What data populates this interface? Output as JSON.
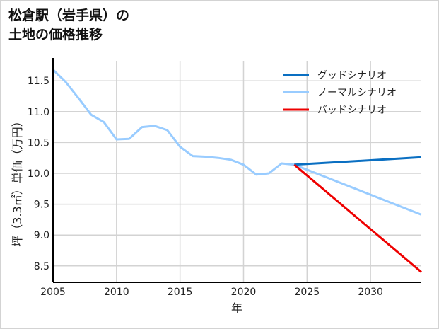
{
  "title": {
    "line1": "松倉駅（岩手県）の",
    "line2": "土地の価格推移"
  },
  "chart_data": {
    "type": "line",
    "title": "松倉駅（岩手県）の土地の価格推移",
    "xlabel": "年",
    "ylabel": "坪（3.3㎡）単価（万円）",
    "xlim": [
      2005,
      2034
    ],
    "ylim": [
      8.22,
      11.88
    ],
    "xticks": [
      2005,
      2010,
      2015,
      2020,
      2025,
      2030
    ],
    "yticks": [
      8.5,
      9.0,
      9.5,
      10.0,
      10.5,
      11.0,
      11.5
    ],
    "xtick_labels": [
      "2005",
      "2010",
      "2015",
      "2020",
      "2025",
      "2030"
    ],
    "ytick_labels": [
      "8.5",
      "9.0",
      "9.5",
      "10.0",
      "10.5",
      "11.0",
      "11.5"
    ],
    "grid": true,
    "legend_position": "upper right",
    "series": [
      {
        "name": "グッドシナリオ",
        "color": "#0a6fc2",
        "x": [
          2024,
          2034
        ],
        "y": [
          10.14,
          10.26
        ]
      },
      {
        "name": "ノーマルシナリオ",
        "color": "#99ccff",
        "x": [
          2005,
          2006,
          2007,
          2008,
          2009,
          2010,
          2011,
          2012,
          2013,
          2014,
          2015,
          2016,
          2017,
          2018,
          2019,
          2020,
          2021,
          2022,
          2023,
          2024,
          2034
        ],
        "y": [
          11.68,
          11.48,
          11.22,
          10.95,
          10.83,
          10.55,
          10.56,
          10.75,
          10.77,
          10.7,
          10.43,
          10.28,
          10.27,
          10.25,
          10.22,
          10.14,
          9.98,
          10.0,
          10.16,
          10.14,
          9.33
        ]
      },
      {
        "name": "バッドシナリオ",
        "color": "#ee0000",
        "x": [
          2024,
          2034
        ],
        "y": [
          10.14,
          8.4
        ]
      }
    ]
  }
}
